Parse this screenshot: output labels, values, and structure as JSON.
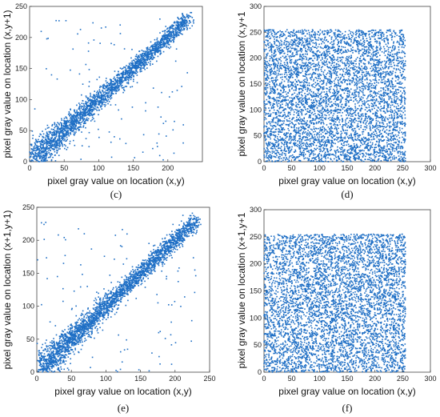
{
  "chart_data": [
    {
      "id": "c",
      "type": "scatter",
      "caption": "(c)",
      "xlabel": "pixel gray value on location (x,y)",
      "ylabel": "pixel gray value on location (x,y+1)",
      "xlim": [
        0,
        250
      ],
      "ylim": [
        0,
        250
      ],
      "xticks": [
        0,
        50,
        100,
        150,
        200
      ],
      "yticks": [
        0,
        50,
        100,
        150,
        200,
        250
      ],
      "color": "#1f6fc5",
      "distribution": "correlated",
      "n_points": 2600,
      "seed": 11
    },
    {
      "id": "d",
      "type": "scatter",
      "caption": "(d)",
      "xlabel": "pixel gray value on location (x,y)",
      "ylabel": "pixel gray value on location (x,y+1",
      "xlim": [
        0,
        300
      ],
      "ylim": [
        0,
        300
      ],
      "xticks": [
        0,
        50,
        100,
        150,
        200,
        250,
        300
      ],
      "yticks": [
        0,
        50,
        100,
        150,
        200,
        250,
        300
      ],
      "color": "#1f6fc5",
      "distribution": "uniform",
      "value_range": [
        0,
        255
      ],
      "n_points": 5200,
      "seed": 23
    },
    {
      "id": "e",
      "type": "scatter",
      "caption": "(e)",
      "xlabel": "pixel gray value on location (x,y)",
      "ylabel": "pixel gray value on location (x+1,y+1)",
      "xlim": [
        0,
        250
      ],
      "ylim": [
        0,
        250
      ],
      "xticks": [
        0,
        50,
        100,
        150,
        200,
        250
      ],
      "yticks": [
        0,
        50,
        100,
        150,
        200,
        250
      ],
      "color": "#1f6fc5",
      "distribution": "correlated",
      "n_points": 2800,
      "seed": 37
    },
    {
      "id": "f",
      "type": "scatter",
      "caption": "(f)",
      "xlabel": "pixel gray value on location (x,y)",
      "ylabel": "pixel gray value on location (x+1,y+1",
      "xlim": [
        0,
        300
      ],
      "ylim": [
        0,
        300
      ],
      "xticks": [
        0,
        50,
        100,
        150,
        200,
        250,
        300
      ],
      "yticks": [
        0,
        50,
        100,
        150,
        200,
        250,
        300
      ],
      "color": "#1f6fc5",
      "distribution": "uniform",
      "value_range": [
        0,
        255
      ],
      "n_points": 5200,
      "seed": 51
    }
  ]
}
